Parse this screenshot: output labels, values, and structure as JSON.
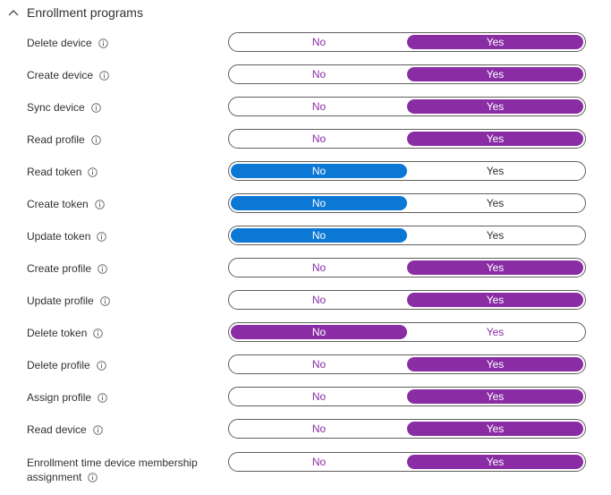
{
  "section": {
    "title": "Enrollment programs",
    "expanded": true
  },
  "toggle_labels": {
    "no": "No",
    "yes": "Yes"
  },
  "colors": {
    "purple": "#8a2da5",
    "blue": "#0a78d4",
    "text": "#323130"
  },
  "rows": [
    {
      "label": "Delete device",
      "selected": "Yes"
    },
    {
      "label": "Create device",
      "selected": "Yes"
    },
    {
      "label": "Sync device",
      "selected": "Yes"
    },
    {
      "label": "Read profile",
      "selected": "Yes"
    },
    {
      "label": "Read token",
      "selected": "No"
    },
    {
      "label": "Create token",
      "selected": "No"
    },
    {
      "label": "Update token",
      "selected": "No"
    },
    {
      "label": "Create profile",
      "selected": "Yes"
    },
    {
      "label": "Update profile",
      "selected": "Yes"
    },
    {
      "label": "Delete token",
      "selected": "No"
    },
    {
      "label": "Delete profile",
      "selected": "Yes"
    },
    {
      "label": "Assign profile",
      "selected": "Yes"
    },
    {
      "label": "Read device",
      "selected": "Yes"
    },
    {
      "label_line1": "Enrollment time device membership",
      "label_line2": "assignment",
      "selected": "Yes"
    }
  ]
}
